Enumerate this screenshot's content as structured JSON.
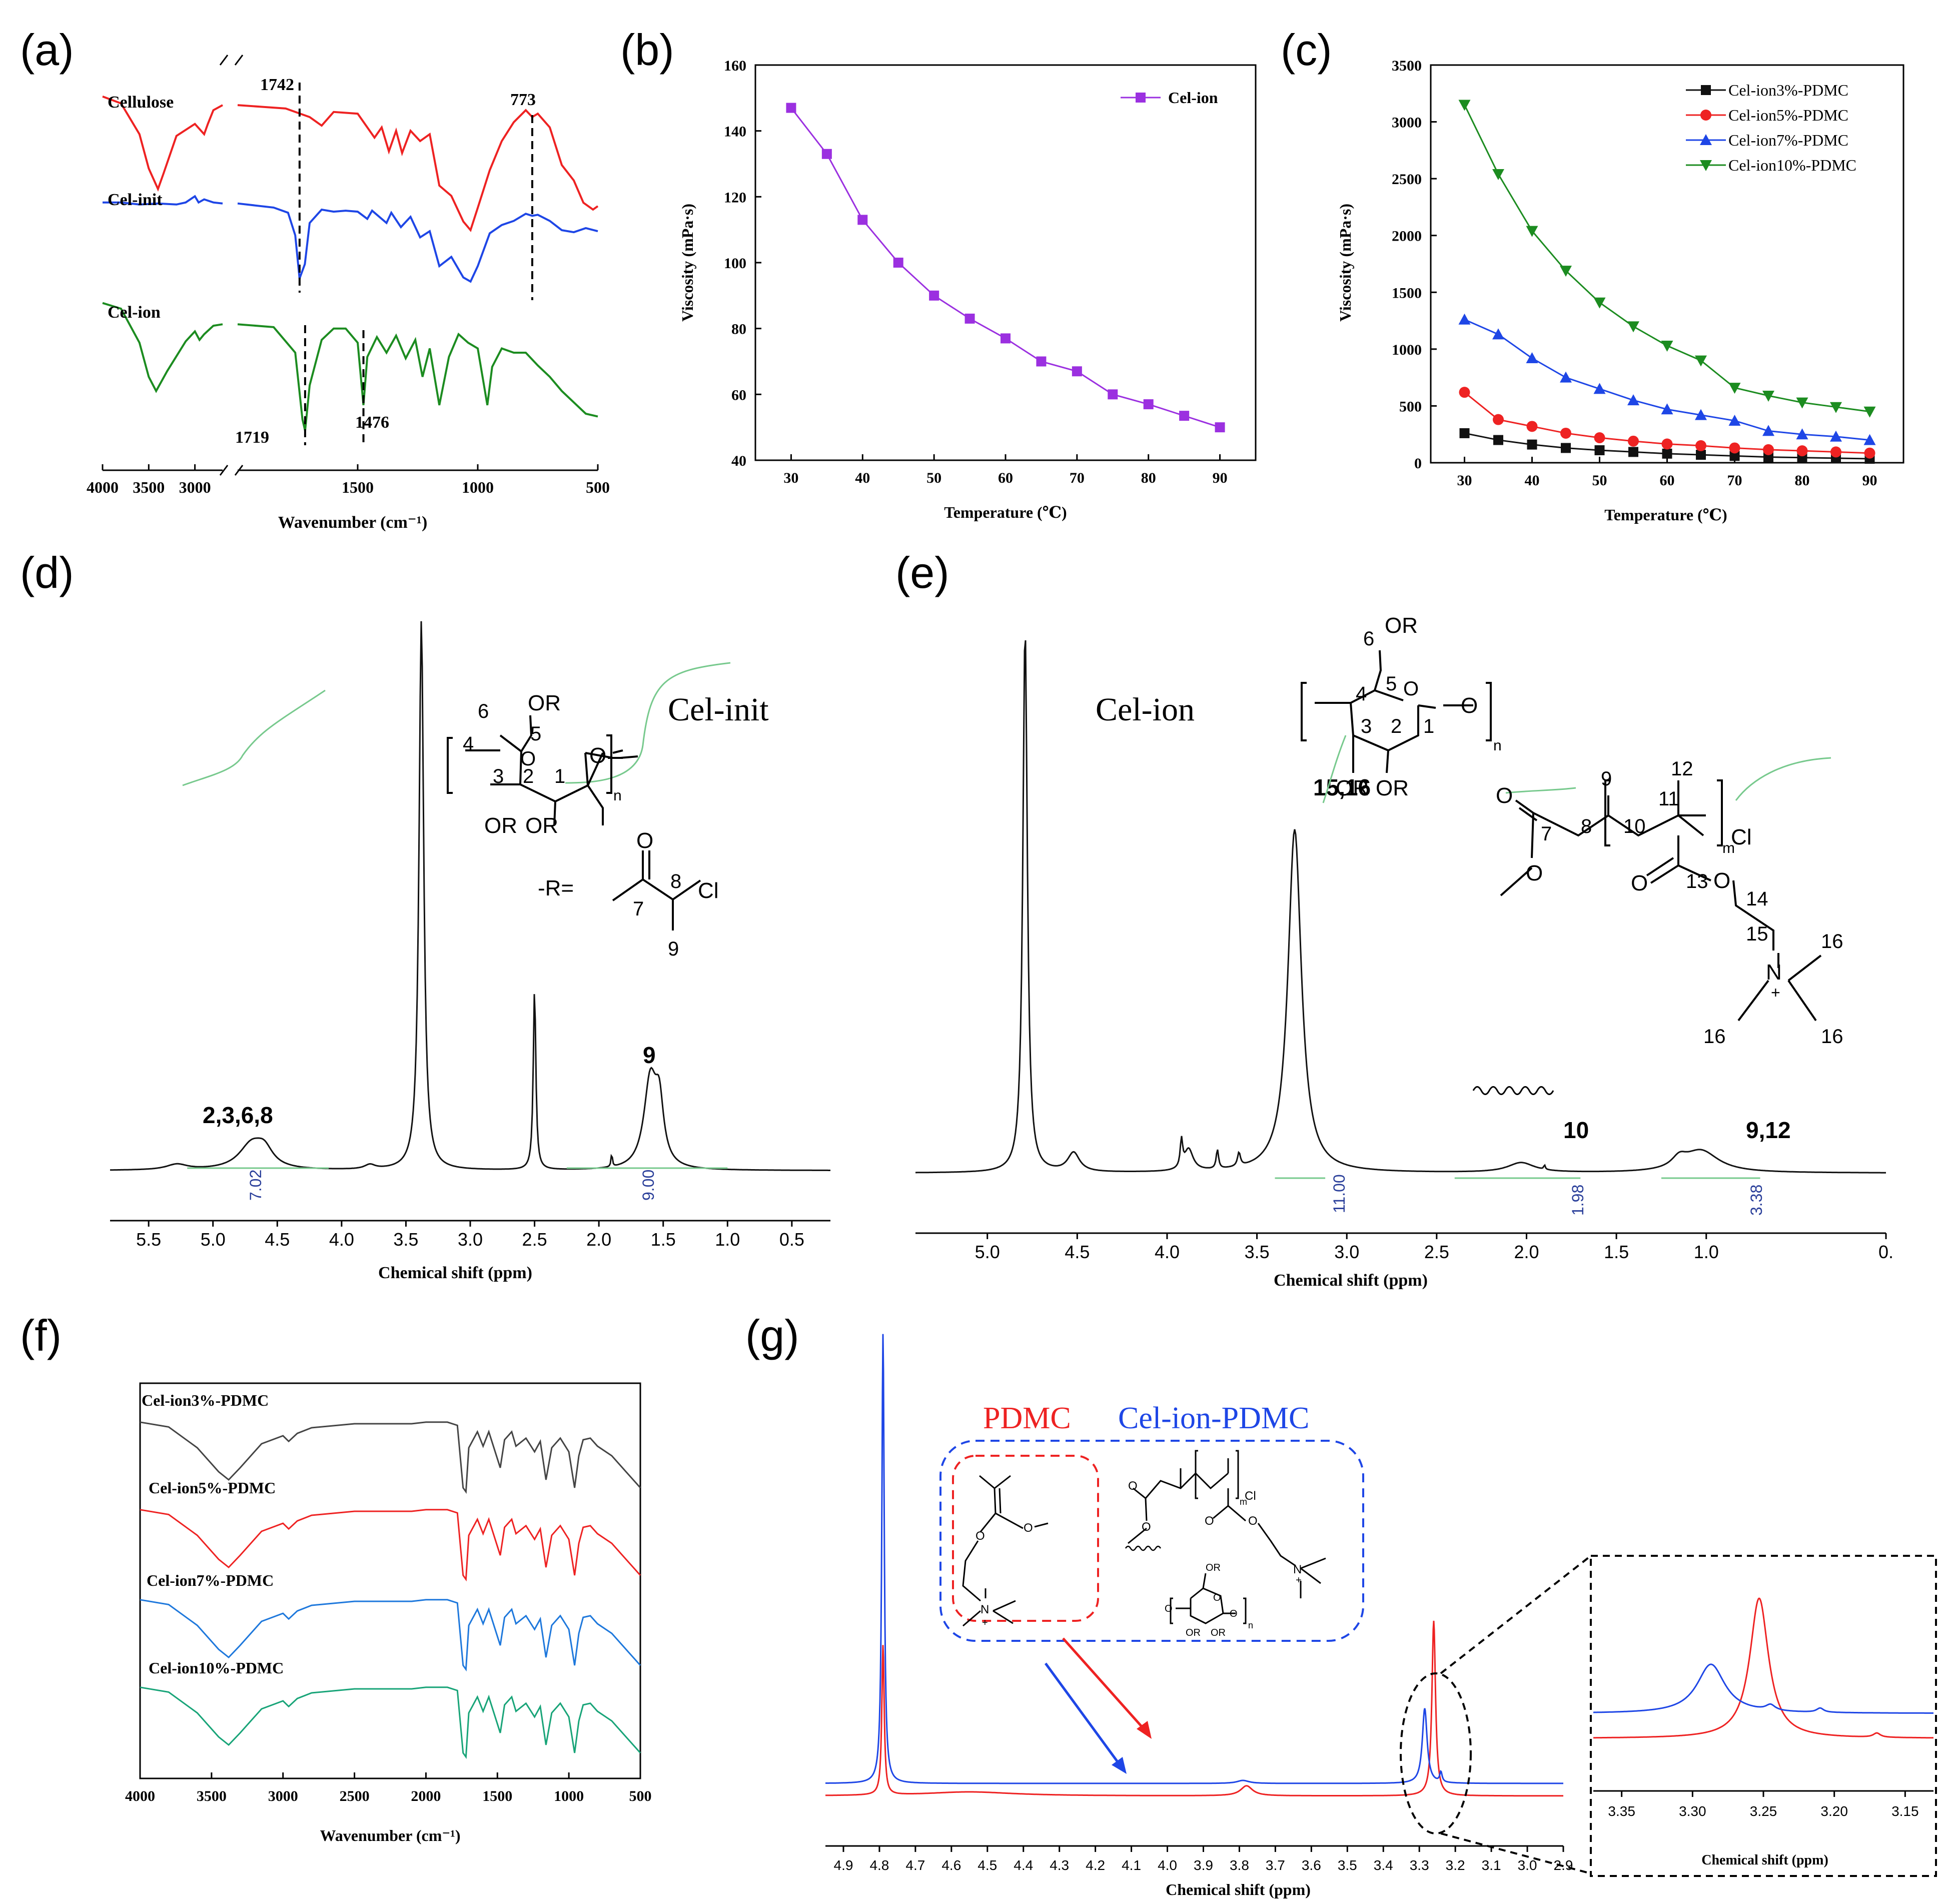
{
  "panel_labels": [
    "(a)",
    "(b)",
    "(c)",
    "(d)",
    "(e)",
    "(f)",
    "(g)"
  ],
  "colors": {
    "red": "#ee2222",
    "blue": "#1e46e6",
    "green": "#1c8c20",
    "black": "#111111",
    "purple": "#9b30e0",
    "teal": "#18a478",
    "lightblue": "#1e78dc",
    "gray": "#444444",
    "integral": "#77c98d",
    "integral_text": "#2a3f9a"
  },
  "chart_data": [
    {
      "id": "a",
      "type": "line",
      "title": "",
      "xlabel": "Wavenumber (cm⁻¹)",
      "ylabel": "",
      "xlim": [
        4000,
        500
      ],
      "axis_break": [
        2700,
        2000
      ],
      "xticks_left": [
        4000,
        3500,
        3000
      ],
      "xticks_right": [
        1500,
        1000,
        500
      ],
      "series": [
        {
          "name": "Cellulose",
          "color": "red",
          "pts": [
            [
              4000,
              0.78
            ],
            [
              3800,
              0.74
            ],
            [
              3600,
              0.56
            ],
            [
              3500,
              0.36
            ],
            [
              3400,
              0.24
            ],
            [
              3340,
              0.33
            ],
            [
              3200,
              0.55
            ],
            [
              3000,
              0.62
            ],
            [
              2900,
              0.56
            ],
            [
              2860,
              0.62
            ],
            [
              2800,
              0.7
            ],
            [
              2700,
              0.73
            ],
            [
              2000,
              0.73
            ],
            [
              1900,
              0.72
            ],
            [
              1800,
              0.71
            ],
            [
              1700,
              0.66
            ],
            [
              1650,
              0.61
            ],
            [
              1600,
              0.69
            ],
            [
              1500,
              0.68
            ],
            [
              1430,
              0.54
            ],
            [
              1400,
              0.6
            ],
            [
              1370,
              0.46
            ],
            [
              1340,
              0.58
            ],
            [
              1315,
              0.45
            ],
            [
              1280,
              0.58
            ],
            [
              1240,
              0.52
            ],
            [
              1200,
              0.56
            ],
            [
              1160,
              0.26
            ],
            [
              1110,
              0.2
            ],
            [
              1060,
              0.05
            ],
            [
              1030,
              0.0
            ],
            [
              1000,
              0.13
            ],
            [
              950,
              0.35
            ],
            [
              900,
              0.52
            ],
            [
              850,
              0.63
            ],
            [
              800,
              0.7
            ],
            [
              773,
              0.66
            ],
            [
              750,
              0.68
            ],
            [
              700,
              0.6
            ],
            [
              650,
              0.38
            ],
            [
              600,
              0.29
            ],
            [
              560,
              0.16
            ],
            [
              520,
              0.12
            ],
            [
              500,
              0.14
            ]
          ]
        },
        {
          "name": "Cel-init",
          "color": "blue",
          "pts": [
            [
              4000,
              0.8
            ],
            [
              3800,
              0.8
            ],
            [
              3600,
              0.78
            ],
            [
              3400,
              0.79
            ],
            [
              3200,
              0.78
            ],
            [
              3100,
              0.8
            ],
            [
              3000,
              0.86
            ],
            [
              2960,
              0.8
            ],
            [
              2900,
              0.83
            ],
            [
              2800,
              0.8
            ],
            [
              2700,
              0.79
            ],
            [
              2000,
              0.79
            ],
            [
              1850,
              0.75
            ],
            [
              1790,
              0.7
            ],
            [
              1760,
              0.48
            ],
            [
              1742,
              0.06
            ],
            [
              1720,
              0.2
            ],
            [
              1700,
              0.6
            ],
            [
              1650,
              0.73
            ],
            [
              1600,
              0.71
            ],
            [
              1550,
              0.72
            ],
            [
              1500,
              0.71
            ],
            [
              1460,
              0.64
            ],
            [
              1440,
              0.72
            ],
            [
              1380,
              0.6
            ],
            [
              1360,
              0.7
            ],
            [
              1320,
              0.56
            ],
            [
              1280,
              0.66
            ],
            [
              1240,
              0.46
            ],
            [
              1200,
              0.52
            ],
            [
              1160,
              0.18
            ],
            [
              1110,
              0.27
            ],
            [
              1060,
              0.07
            ],
            [
              1030,
              0.03
            ],
            [
              1000,
              0.18
            ],
            [
              950,
              0.5
            ],
            [
              900,
              0.58
            ],
            [
              850,
              0.62
            ],
            [
              800,
              0.69
            ],
            [
              773,
              0.67
            ],
            [
              750,
              0.68
            ],
            [
              700,
              0.62
            ],
            [
              650,
              0.53
            ],
            [
              600,
              0.51
            ],
            [
              550,
              0.55
            ],
            [
              500,
              0.52
            ]
          ]
        },
        {
          "name": "Cel-ion",
          "color": "green",
          "pts": [
            [
              4000,
              0.9
            ],
            [
              3800,
              0.86
            ],
            [
              3600,
              0.62
            ],
            [
              3500,
              0.38
            ],
            [
              3420,
              0.28
            ],
            [
              3300,
              0.42
            ],
            [
              3100,
              0.63
            ],
            [
              3000,
              0.7
            ],
            [
              2950,
              0.64
            ],
            [
              2900,
              0.68
            ],
            [
              2800,
              0.74
            ],
            [
              2700,
              0.75
            ],
            [
              2000,
              0.75
            ],
            [
              1850,
              0.73
            ],
            [
              1760,
              0.55
            ],
            [
              1730,
              0.08
            ],
            [
              1719,
              0.0
            ],
            [
              1700,
              0.32
            ],
            [
              1650,
              0.64
            ],
            [
              1600,
              0.72
            ],
            [
              1550,
              0.72
            ],
            [
              1500,
              0.62
            ],
            [
              1476,
              0.18
            ],
            [
              1460,
              0.52
            ],
            [
              1420,
              0.66
            ],
            [
              1380,
              0.55
            ],
            [
              1340,
              0.67
            ],
            [
              1300,
              0.51
            ],
            [
              1260,
              0.64
            ],
            [
              1230,
              0.38
            ],
            [
              1200,
              0.58
            ],
            [
              1160,
              0.18
            ],
            [
              1120,
              0.52
            ],
            [
              1080,
              0.68
            ],
            [
              1040,
              0.62
            ],
            [
              1000,
              0.58
            ],
            [
              960,
              0.18
            ],
            [
              940,
              0.45
            ],
            [
              900,
              0.58
            ],
            [
              850,
              0.55
            ],
            [
              800,
              0.55
            ],
            [
              750,
              0.46
            ],
            [
              700,
              0.38
            ],
            [
              650,
              0.28
            ],
            [
              600,
              0.2
            ],
            [
              550,
              0.12
            ],
            [
              500,
              0.1
            ]
          ]
        }
      ],
      "peak_labels": [
        "1742",
        "773",
        "1719",
        "1476"
      ]
    },
    {
      "id": "b",
      "type": "line",
      "title": "",
      "xlabel": "Temperature (℃)",
      "ylabel": "Viscosity (mPa·s)",
      "xlim": [
        25,
        95
      ],
      "ylim": [
        40,
        160
      ],
      "xticks": [
        30,
        40,
        50,
        60,
        70,
        80,
        90
      ],
      "yticks": [
        40,
        60,
        80,
        100,
        120,
        140,
        160
      ],
      "legend_position": "top-right",
      "series": [
        {
          "name": "Cel-ion",
          "color": "purple",
          "marker": "square",
          "x": [
            30,
            35,
            40,
            45,
            50,
            55,
            60,
            65,
            70,
            75,
            80,
            85,
            90
          ],
          "y": [
            147,
            133,
            113,
            100,
            90,
            83,
            77,
            70,
            67,
            60,
            57,
            53.5,
            50
          ]
        }
      ]
    },
    {
      "id": "c",
      "type": "line",
      "title": "",
      "xlabel": "Temperature (℃)",
      "ylabel": "Viscosity (mPa·s)",
      "xlim": [
        25,
        95
      ],
      "ylim": [
        0,
        3500
      ],
      "xticks": [
        30,
        40,
        50,
        60,
        70,
        80,
        90
      ],
      "yticks": [
        0,
        500,
        1000,
        1500,
        2000,
        2500,
        3000,
        3500
      ],
      "legend_position": "top-right",
      "x": [
        30,
        35,
        40,
        45,
        50,
        55,
        60,
        65,
        70,
        75,
        80,
        85,
        90
      ],
      "series": [
        {
          "name": "Cel-ion3%-PDMC",
          "color": "black",
          "marker": "square",
          "values": [
            260,
            200,
            160,
            130,
            110,
            95,
            80,
            70,
            60,
            50,
            45,
            40,
            35
          ]
        },
        {
          "name": "Cel-ion5%-PDMC",
          "color": "red",
          "marker": "circle",
          "values": [
            620,
            380,
            320,
            260,
            220,
            190,
            165,
            150,
            130,
            115,
            105,
            95,
            85
          ]
        },
        {
          "name": "Cel-ion7%-PDMC",
          "color": "blue",
          "marker": "triangle-up",
          "values": [
            1260,
            1130,
            920,
            750,
            650,
            550,
            470,
            420,
            370,
            280,
            250,
            230,
            200
          ]
        },
        {
          "name": "Cel-ion10%-PDMC",
          "color": "green",
          "marker": "triangle-down",
          "values": [
            3150,
            2540,
            2040,
            1690,
            1410,
            1200,
            1030,
            900,
            660,
            590,
            530,
            490,
            450
          ]
        }
      ]
    },
    {
      "id": "d",
      "type": "line",
      "title": "Cel-init",
      "xlabel": "Chemical shift (ppm)",
      "ylabel": "",
      "xlim": [
        5.8,
        0.2
      ],
      "xticks": [
        5.5,
        5.0,
        4.5,
        4.0,
        3.5,
        3.0,
        2.5,
        2.0,
        1.5,
        1.0,
        0.5
      ],
      "peaks": [
        {
          "label": "2,3,6,8",
          "x": 4.7,
          "h": 0.045,
          "w": 0.12
        },
        {
          "label": "",
          "x": 3.38,
          "h": 1.0,
          "w": 0.022
        },
        {
          "label": "",
          "x": 2.5,
          "h": 0.33,
          "w": 0.012
        },
        {
          "label": "9",
          "x": 1.6,
          "h": 0.16,
          "w": 0.06
        }
      ],
      "integrals": [
        "7.02",
        "9.00"
      ]
    },
    {
      "id": "e",
      "type": "line",
      "title": "Cel-ion",
      "xlabel": "Chemical shift (ppm)",
      "ylabel": "",
      "xlim": [
        5.4,
        0.0
      ],
      "xticks": [
        5.0,
        4.5,
        4.0,
        3.5,
        3.0,
        2.5,
        2.0,
        1.5,
        1.0,
        "0."
      ],
      "peaks": [
        {
          "label": "",
          "x": 4.79,
          "h": 1.0,
          "w": 0.015
        },
        {
          "label": "15,16",
          "x": 3.29,
          "h": 0.63,
          "w": 0.045
        },
        {
          "label": "10",
          "x": 2.03,
          "h": 0.018,
          "w": 0.09
        },
        {
          "label": "9,12",
          "x": 1.03,
          "h": 0.04,
          "w": 0.12
        }
      ],
      "integrals": [
        "11.00",
        "1.98",
        "3.38"
      ]
    },
    {
      "id": "f",
      "type": "line",
      "title": "",
      "xlabel": "Wavenumber (cm⁻¹)",
      "ylabel": "",
      "xlim": [
        4000,
        500
      ],
      "xticks": [
        4000,
        3500,
        3000,
        2500,
        2000,
        1500,
        1000,
        500
      ],
      "series": [
        {
          "name": "Cel-ion3%-PDMC",
          "color": "gray"
        },
        {
          "name": "Cel-ion5%-PDMC",
          "color": "red"
        },
        {
          "name": "Cel-ion7%-PDMC",
          "color": "lightblue"
        },
        {
          "name": "Cel-ion10%-PDMC",
          "color": "teal"
        }
      ]
    },
    {
      "id": "g",
      "type": "line",
      "title": "",
      "xlabel": "Chemical shift (ppm)",
      "ylabel": "",
      "xlim": [
        4.95,
        2.9
      ],
      "xticks": [
        4.9,
        4.8,
        4.7,
        4.6,
        4.5,
        4.4,
        4.3,
        4.2,
        4.1,
        4.0,
        3.9,
        3.8,
        3.7,
        3.6,
        3.5,
        3.4,
        3.3,
        3.2,
        3.1,
        3.0,
        "2.9"
      ],
      "legend": [
        "PDMC",
        "Cel-ion-PDMC"
      ],
      "inset": {
        "xlim": [
          3.37,
          3.13
        ],
        "xticks": [
          3.35,
          3.3,
          3.25,
          3.2,
          3.15
        ],
        "xlabel": "Chemical shift (ppm)"
      }
    }
  ],
  "structures": {
    "d": {
      "R_label": "-R=",
      "atoms": [
        "OR",
        "O",
        "O",
        "OR",
        "OR",
        "O",
        "Cl",
        "n"
      ],
      "numbers": [
        "6",
        "5",
        "4",
        "3",
        "2",
        "1",
        "7",
        "8",
        "9"
      ]
    },
    "e": {
      "atoms": [
        "OR",
        "O",
        "O",
        "OR",
        "OR",
        "n",
        "O",
        "O",
        "m",
        "Cl",
        "O",
        "O",
        "N",
        "+"
      ],
      "numbers": [
        "6",
        "5",
        "4",
        "3",
        "2",
        "1",
        "7",
        "8",
        "9",
        "10",
        "11",
        "12",
        "13",
        "14",
        "15",
        "16",
        "16",
        "16"
      ]
    },
    "g": {
      "atoms": [
        "O",
        "O",
        "N",
        "+",
        "O",
        "O",
        "m",
        "Cl",
        "O",
        "O",
        "N",
        "+",
        "OR",
        "O",
        "O",
        "O",
        "n",
        "OR",
        "OR"
      ]
    }
  }
}
